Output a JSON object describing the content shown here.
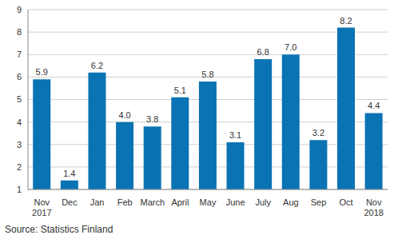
{
  "chart_data": {
    "type": "bar",
    "categories": [
      "Nov 2017",
      "Dec",
      "Jan",
      "Feb",
      "March",
      "April",
      "May",
      "June",
      "July",
      "Aug",
      "Sep",
      "Oct",
      "Nov 2018"
    ],
    "values": [
      5.9,
      1.4,
      6.2,
      4.0,
      3.8,
      5.1,
      5.8,
      3.1,
      6.8,
      7.0,
      3.2,
      8.2,
      4.4
    ],
    "value_labels": [
      "5.9",
      "1.4",
      "6.2",
      "4.0",
      "3.8",
      "5.1",
      "5.8",
      "3.1",
      "6.8",
      "7.0",
      "3.2",
      "8.2",
      "4.4"
    ],
    "color": "#0a73b4",
    "ylim": [
      1,
      9
    ],
    "yticks": [
      1,
      2,
      3,
      4,
      5,
      6,
      7,
      8,
      9
    ],
    "grid": true,
    "data_labels": true,
    "source": "Source: Statistics Finland"
  }
}
